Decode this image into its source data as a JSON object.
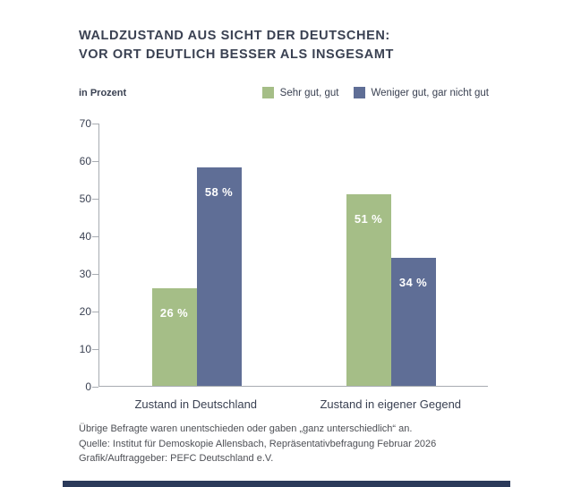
{
  "title_line1": "WALDZUSTAND AUS SICHT DER DEUTSCHEN:",
  "title_line2": "VOR ORT DEUTLICH BESSER ALS INSGESAMT",
  "axis_unit_label": "in Prozent",
  "colors": {
    "positive": "#a5be87",
    "negative": "#5f6e96",
    "accent_strip": "#2b3a5a",
    "axis": "#a8acb2",
    "text": "#3a4152"
  },
  "chart_data": {
    "type": "bar",
    "categories": [
      "Zustand in Deutschland",
      "Zustand in eigener Gegend"
    ],
    "series": [
      {
        "name": "Sehr gut, gut",
        "color": "#a5be87",
        "values": [
          26,
          51
        ],
        "value_labels": [
          "26 %",
          "51 %"
        ]
      },
      {
        "name": "Weniger gut, gar nicht gut",
        "color": "#5f6e96",
        "values": [
          58,
          34
        ],
        "value_labels": [
          "58 %",
          "34 %"
        ]
      }
    ],
    "ylim": [
      0,
      70
    ],
    "yticks": [
      0,
      10,
      20,
      30,
      40,
      50,
      60,
      70
    ],
    "grid": false,
    "legend_position": "top-right",
    "ylabel": "in Prozent",
    "xlabel": ""
  },
  "footnotes": [
    "Übrige Befragte waren unentschieden oder gaben „ganz unterschiedlich“ an.",
    "Quelle: Institut für Demoskopie Allensbach, Repräsentativbefragung Februar 2026",
    "Grafik/Auftraggeber: PEFC Deutschland e.V."
  ]
}
